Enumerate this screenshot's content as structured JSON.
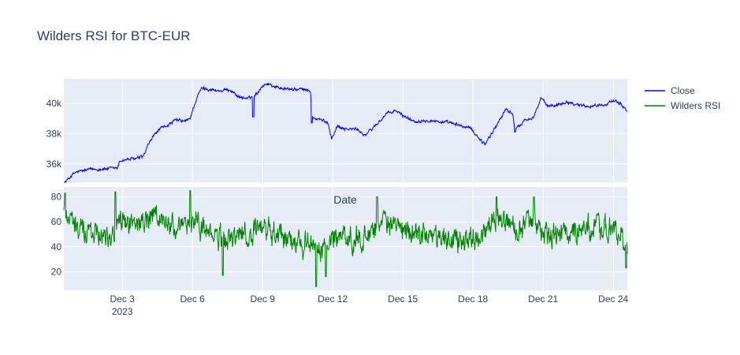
{
  "chart_data": {
    "type": "line",
    "title": "Wilders RSI for BTC-EUR",
    "annotation": "Date",
    "x_range_days": [
      0.5,
      24.6
    ],
    "x_ticks": [
      {
        "day": 3,
        "label": "Dec 3",
        "sublabel": "2023"
      },
      {
        "day": 6,
        "label": "Dec 6",
        "sublabel": ""
      },
      {
        "day": 9,
        "label": "Dec 9",
        "sublabel": ""
      },
      {
        "day": 12,
        "label": "Dec 12",
        "sublabel": ""
      },
      {
        "day": 15,
        "label": "Dec 15",
        "sublabel": ""
      },
      {
        "day": 18,
        "label": "Dec 18",
        "sublabel": ""
      },
      {
        "day": 21,
        "label": "Dec 21",
        "sublabel": ""
      },
      {
        "day": 24,
        "label": "Dec 24",
        "sublabel": ""
      }
    ],
    "panels": [
      {
        "series_name": "Close",
        "color": "#0000ff",
        "ylim": [
          34800,
          41600
        ],
        "y_ticks": [
          {
            "value": 36000,
            "label": "36k"
          },
          {
            "value": 38000,
            "label": "38k"
          },
          {
            "value": 40000,
            "label": "40k"
          }
        ],
        "anchors": [
          [
            0.5,
            34700
          ],
          [
            0.8,
            35200
          ],
          [
            1.0,
            35450
          ],
          [
            1.3,
            35550
          ],
          [
            1.6,
            35650
          ],
          [
            2.0,
            35650
          ],
          [
            2.5,
            35700
          ],
          [
            2.8,
            35750
          ],
          [
            2.9,
            36200
          ],
          [
            3.2,
            36300
          ],
          [
            3.6,
            36350
          ],
          [
            3.9,
            36500
          ],
          [
            4.1,
            37200
          ],
          [
            4.3,
            37800
          ],
          [
            4.6,
            38300
          ],
          [
            5.0,
            38600
          ],
          [
            5.3,
            38900
          ],
          [
            5.7,
            38800
          ],
          [
            5.9,
            39000
          ],
          [
            6.0,
            39500
          ],
          [
            6.2,
            40400
          ],
          [
            6.4,
            41000
          ],
          [
            6.8,
            40900
          ],
          [
            7.2,
            40800
          ],
          [
            7.6,
            40900
          ],
          [
            8.0,
            40400
          ],
          [
            8.4,
            40300
          ],
          [
            8.8,
            40700
          ],
          [
            8.95,
            41100
          ],
          [
            9.2,
            41300
          ],
          [
            9.6,
            41050
          ],
          [
            10.0,
            40950
          ],
          [
            10.4,
            40900
          ],
          [
            10.8,
            40900
          ],
          [
            11.05,
            40800
          ],
          [
            11.15,
            39000
          ],
          [
            11.5,
            38900
          ],
          [
            11.8,
            38700
          ],
          [
            11.95,
            37700
          ],
          [
            12.2,
            38500
          ],
          [
            12.6,
            38300
          ],
          [
            13.0,
            38300
          ],
          [
            13.4,
            37900
          ],
          [
            13.8,
            38500
          ],
          [
            14.0,
            38800
          ],
          [
            14.3,
            39300
          ],
          [
            14.7,
            39500
          ],
          [
            15.0,
            39200
          ],
          [
            15.5,
            38800
          ],
          [
            16.0,
            38900
          ],
          [
            16.5,
            38800
          ],
          [
            17.0,
            38700
          ],
          [
            17.5,
            38500
          ],
          [
            17.9,
            38350
          ],
          [
            18.2,
            37800
          ],
          [
            18.5,
            37300
          ],
          [
            18.8,
            38000
          ],
          [
            19.1,
            38800
          ],
          [
            19.4,
            39600
          ],
          [
            19.7,
            39300
          ],
          [
            19.8,
            38200
          ],
          [
            20.2,
            38900
          ],
          [
            20.6,
            39100
          ],
          [
            20.9,
            40300
          ],
          [
            21.2,
            39800
          ],
          [
            21.6,
            39900
          ],
          [
            22.0,
            40100
          ],
          [
            22.5,
            39900
          ],
          [
            23.0,
            39800
          ],
          [
            23.5,
            39900
          ],
          [
            24.0,
            40100
          ],
          [
            24.3,
            40000
          ],
          [
            24.6,
            39500
          ]
        ],
        "spikes": [
          [
            8.6,
            39100
          ],
          [
            11.1,
            38700
          ],
          [
            19.8,
            38100
          ]
        ]
      },
      {
        "series_name": "Wilders RSI",
        "color": "#008000",
        "ylim": [
          5,
          88
        ],
        "y_ticks": [
          {
            "value": 20,
            "label": "20"
          },
          {
            "value": 40,
            "label": "40"
          },
          {
            "value": 60,
            "label": "60"
          },
          {
            "value": 80,
            "label": "80"
          }
        ],
        "anchors": [
          [
            0.5,
            70
          ],
          [
            0.8,
            64
          ],
          [
            1.0,
            55
          ],
          [
            1.5,
            52
          ],
          [
            2.0,
            52
          ],
          [
            2.5,
            50
          ],
          [
            3.0,
            60
          ],
          [
            3.5,
            58
          ],
          [
            4.0,
            60
          ],
          [
            4.5,
            64
          ],
          [
            5.0,
            58
          ],
          [
            5.5,
            52
          ],
          [
            6.0,
            62
          ],
          [
            6.5,
            55
          ],
          [
            7.0,
            47
          ],
          [
            7.5,
            45
          ],
          [
            8.0,
            50
          ],
          [
            8.5,
            48
          ],
          [
            9.0,
            54
          ],
          [
            9.5,
            50
          ],
          [
            10.0,
            48
          ],
          [
            10.5,
            45
          ],
          [
            11.0,
            42
          ],
          [
            11.5,
            35
          ],
          [
            12.0,
            48
          ],
          [
            12.5,
            48
          ],
          [
            13.0,
            46
          ],
          [
            13.5,
            50
          ],
          [
            14.0,
            60
          ],
          [
            14.5,
            56
          ],
          [
            15.0,
            52
          ],
          [
            15.5,
            50
          ],
          [
            16.0,
            54
          ],
          [
            16.5,
            48
          ],
          [
            17.0,
            45
          ],
          [
            17.5,
            45
          ],
          [
            18.0,
            48
          ],
          [
            18.5,
            50
          ],
          [
            19.0,
            62
          ],
          [
            19.5,
            58
          ],
          [
            20.0,
            55
          ],
          [
            20.5,
            62
          ],
          [
            21.0,
            50
          ],
          [
            21.5,
            48
          ],
          [
            22.0,
            52
          ],
          [
            22.5,
            53
          ],
          [
            23.0,
            54
          ],
          [
            23.5,
            55
          ],
          [
            24.0,
            54
          ],
          [
            24.3,
            48
          ],
          [
            24.6,
            38
          ]
        ],
        "spikes": [
          [
            0.55,
            83
          ],
          [
            2.7,
            84
          ],
          [
            5.9,
            85
          ],
          [
            13.9,
            80
          ],
          [
            19.0,
            80
          ],
          [
            20.6,
            80
          ],
          [
            7.3,
            17
          ],
          [
            11.3,
            8
          ],
          [
            11.7,
            16
          ],
          [
            24.55,
            23
          ]
        ]
      }
    ],
    "legend": {
      "placement": "right",
      "entries": [
        {
          "name": "Close",
          "color": "#0000ff"
        },
        {
          "name": "Wilders RSI",
          "color": "#008000"
        }
      ]
    },
    "grid": true
  }
}
